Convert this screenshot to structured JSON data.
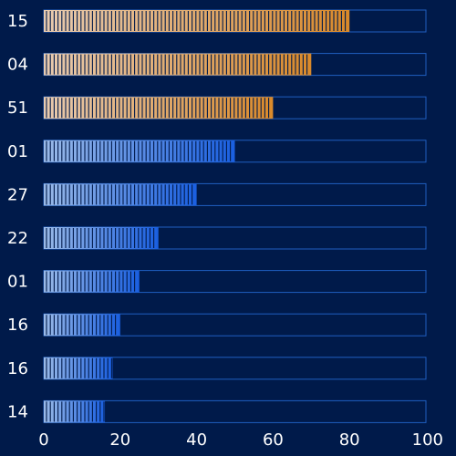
{
  "chart_data": {
    "type": "bar",
    "orientation": "horizontal",
    "categories": [
      "15",
      "04",
      "51",
      "01",
      "27",
      "22",
      "01",
      "16",
      "16",
      "14"
    ],
    "values": [
      80,
      70,
      60,
      50,
      40,
      30,
      25,
      20,
      18,
      16
    ],
    "xlim": [
      0,
      100
    ],
    "x_ticks": [
      "0",
      "20",
      "40",
      "60",
      "80",
      "100"
    ],
    "title": "",
    "xlabel": "",
    "ylabel": "",
    "grid": false,
    "legend": "none",
    "colors": {
      "background": "#001a4a",
      "track_border": "#1f5fc0",
      "top_bar_start": "#e8cbb0",
      "top_bar_end": "#d9892a",
      "other_bar_start": "#9bbbe8",
      "other_bar_end": "#1a5fe0",
      "stripe": "#001a4a"
    },
    "highlight_top_n": 3
  }
}
